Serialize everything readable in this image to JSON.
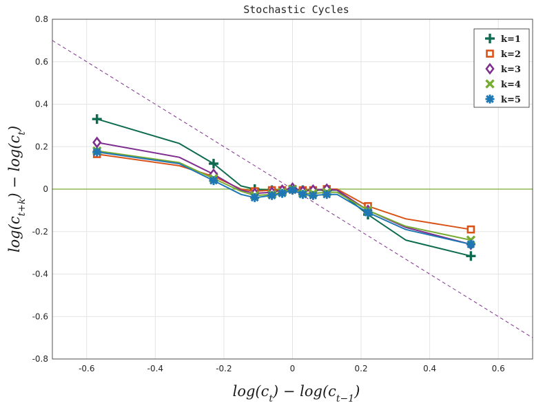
{
  "chart_data": {
    "type": "line",
    "title": "Stochastic Cycles",
    "xlabel": "log(c_t) − log(c_{t−1})",
    "ylabel": "log(c_{t+k}) − log(c_t)",
    "xlim": [
      -0.7,
      0.7
    ],
    "ylim": [
      -0.8,
      0.8
    ],
    "xticks": [
      -0.6,
      -0.4,
      -0.2,
      0,
      0.2,
      0.4,
      0.6
    ],
    "xtick_labels": [
      "-0.6",
      "-0.4",
      "-0.2",
      "0",
      "0.2",
      "0.4",
      "0.6"
    ],
    "yticks": [
      -0.8,
      -0.6,
      -0.4,
      -0.2,
      0,
      0.2,
      0.4,
      0.6,
      0.8
    ],
    "ytick_labels": [
      "-0.8",
      "-0.6",
      "-0.4",
      "-0.2",
      "0",
      "0.2",
      "0.4",
      "0.6",
      "0.8"
    ],
    "grid": true,
    "legend_position": "top-right",
    "series": [
      {
        "name": "k=1",
        "color": "#0e6b4f",
        "marker": "plus",
        "x": [
          -0.57,
          -0.33,
          -0.23,
          -0.15,
          -0.11,
          -0.06,
          -0.03,
          0.0,
          0.03,
          0.06,
          0.1,
          0.13,
          0.22,
          0.33,
          0.52
        ],
        "y": [
          0.33,
          0.215,
          0.12,
          0.015,
          0.0,
          -0.005,
          -0.005,
          0.0,
          -0.005,
          -0.005,
          -0.005,
          -0.005,
          -0.12,
          -0.24,
          -0.315
        ],
        "marker_idx": [
          0,
          2,
          4,
          5,
          6,
          7,
          8,
          9,
          10,
          12,
          14
        ]
      },
      {
        "name": "k=2",
        "color": "#d95319",
        "marker": "square",
        "x": [
          -0.57,
          -0.33,
          -0.23,
          -0.15,
          -0.11,
          -0.06,
          -0.03,
          0.0,
          0.03,
          0.06,
          0.1,
          0.13,
          0.22,
          0.33,
          0.52
        ],
        "y": [
          0.165,
          0.11,
          0.06,
          0.0,
          -0.01,
          -0.005,
          -0.005,
          0.0,
          -0.005,
          -0.005,
          0.0,
          0.0,
          -0.08,
          -0.14,
          -0.19
        ],
        "marker_idx": [
          0,
          2,
          4,
          5,
          6,
          7,
          8,
          9,
          10,
          12,
          14
        ]
      },
      {
        "name": "k=3",
        "color": "#7e2f8e",
        "marker": "diamond",
        "x": [
          -0.57,
          -0.33,
          -0.23,
          -0.15,
          -0.11,
          -0.06,
          -0.03,
          0.0,
          0.03,
          0.06,
          0.1,
          0.13,
          0.22,
          0.33,
          0.52
        ],
        "y": [
          0.22,
          0.15,
          0.07,
          -0.005,
          -0.02,
          -0.015,
          -0.005,
          0.005,
          -0.01,
          -0.005,
          0.0,
          -0.005,
          -0.1,
          -0.18,
          -0.26
        ],
        "marker_idx": [
          0,
          2,
          4,
          5,
          6,
          7,
          8,
          9,
          10,
          12,
          14
        ]
      },
      {
        "name": "k=4",
        "color": "#77ac30",
        "marker": "x",
        "x": [
          -0.57,
          -0.33,
          -0.23,
          -0.15,
          -0.11,
          -0.06,
          -0.03,
          0.0,
          0.03,
          0.06,
          0.1,
          0.13,
          0.22,
          0.33,
          0.52
        ],
        "y": [
          0.18,
          0.125,
          0.05,
          -0.01,
          -0.03,
          -0.025,
          -0.015,
          0.0,
          -0.02,
          -0.02,
          -0.015,
          -0.015,
          -0.1,
          -0.175,
          -0.24
        ],
        "marker_idx": [
          0,
          2,
          4,
          5,
          6,
          7,
          8,
          9,
          10,
          12,
          14
        ]
      },
      {
        "name": "k=5",
        "color": "#1f77b4",
        "marker": "star",
        "x": [
          -0.57,
          -0.33,
          -0.23,
          -0.15,
          -0.11,
          -0.06,
          -0.03,
          0.0,
          0.03,
          0.06,
          0.1,
          0.13,
          0.22,
          0.33,
          0.52
        ],
        "y": [
          0.175,
          0.12,
          0.04,
          -0.025,
          -0.04,
          -0.03,
          -0.02,
          -0.005,
          -0.025,
          -0.03,
          -0.025,
          -0.025,
          -0.11,
          -0.19,
          -0.26
        ],
        "marker_idx": [
          0,
          2,
          4,
          5,
          6,
          7,
          8,
          9,
          10,
          12,
          14
        ]
      }
    ],
    "reference_lines": [
      {
        "type": "horizontal",
        "y": 0,
        "color": "#77ac30",
        "style": "solid"
      },
      {
        "type": "diagonal",
        "x": [
          -0.7,
          0.7
        ],
        "y": [
          0.7,
          -0.7
        ],
        "color": "#7e2f8e",
        "style": "dashed"
      }
    ]
  }
}
